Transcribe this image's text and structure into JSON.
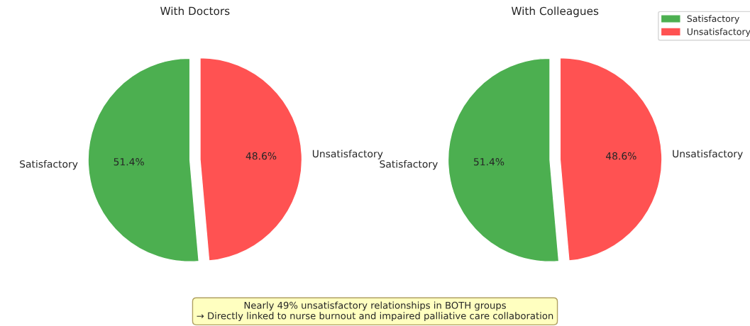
{
  "chart_data": [
    {
      "type": "pie",
      "title": "With Doctors",
      "categories": [
        "Satisfactory",
        "Unsatisfactory"
      ],
      "values": [
        51.4,
        48.6
      ],
      "value_labels": [
        "51.4%",
        "48.6%"
      ],
      "colors": [
        "#4caf50",
        "#ff5252"
      ],
      "legend": false
    },
    {
      "type": "pie",
      "title": "With Colleagues",
      "categories": [
        "Satisfactory",
        "Unsatisfactory"
      ],
      "values": [
        51.4,
        48.6
      ],
      "value_labels": [
        "51.4%",
        "48.6%"
      ],
      "colors": [
        "#4caf50",
        "#ff5252"
      ],
      "legend": "top right",
      "annotations": [
        "Nearly 49% unsatisfactory relationships in BOTH groups\n→ Directly linked to nurse burnout and impaired palliative care collaboration"
      ]
    }
  ]
}
